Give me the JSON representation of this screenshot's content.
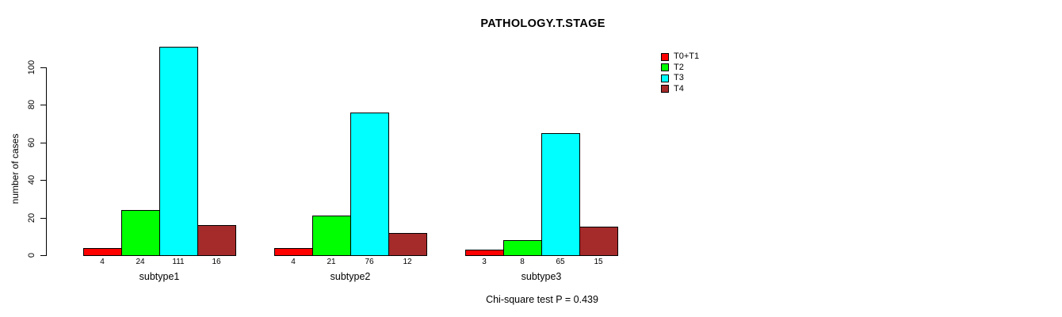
{
  "title": "PATHOLOGY.T.STAGE",
  "ylabel": "number of cases",
  "footer": "Chi-square test P = 0.439",
  "legend": {
    "items": [
      {
        "label": "T0+T1",
        "color": "#ff0000"
      },
      {
        "label": "T2",
        "color": "#00ff00"
      },
      {
        "label": "T3",
        "color": "#00ffff"
      },
      {
        "label": "T4",
        "color": "#a52a2a"
      }
    ]
  },
  "chart_data": {
    "type": "bar",
    "title": "PATHOLOGY.T.STAGE",
    "xlabel": "",
    "ylabel": "number of cases",
    "categories": [
      "subtype1",
      "subtype2",
      "subtype3"
    ],
    "series": [
      {
        "name": "T0+T1",
        "color": "#ff0000",
        "values": [
          4,
          4,
          3
        ]
      },
      {
        "name": "T2",
        "color": "#00ff00",
        "values": [
          24,
          21,
          8
        ]
      },
      {
        "name": "T3",
        "color": "#00ffff",
        "values": [
          111,
          76,
          65
        ]
      },
      {
        "name": "T4",
        "color": "#a52a2a",
        "values": [
          16,
          12,
          15
        ]
      }
    ],
    "bar_value_labels": [
      [
        "4",
        "24",
        "111",
        "16"
      ],
      [
        "4",
        "21",
        "76",
        "12"
      ],
      [
        "3",
        "8",
        "65",
        "15"
      ]
    ],
    "yticks": [
      0,
      20,
      40,
      60,
      80,
      100
    ],
    "ylim": [
      0,
      100
    ],
    "grid": false,
    "legend_position": "right",
    "annotation": "Chi-square test P = 0.439"
  }
}
